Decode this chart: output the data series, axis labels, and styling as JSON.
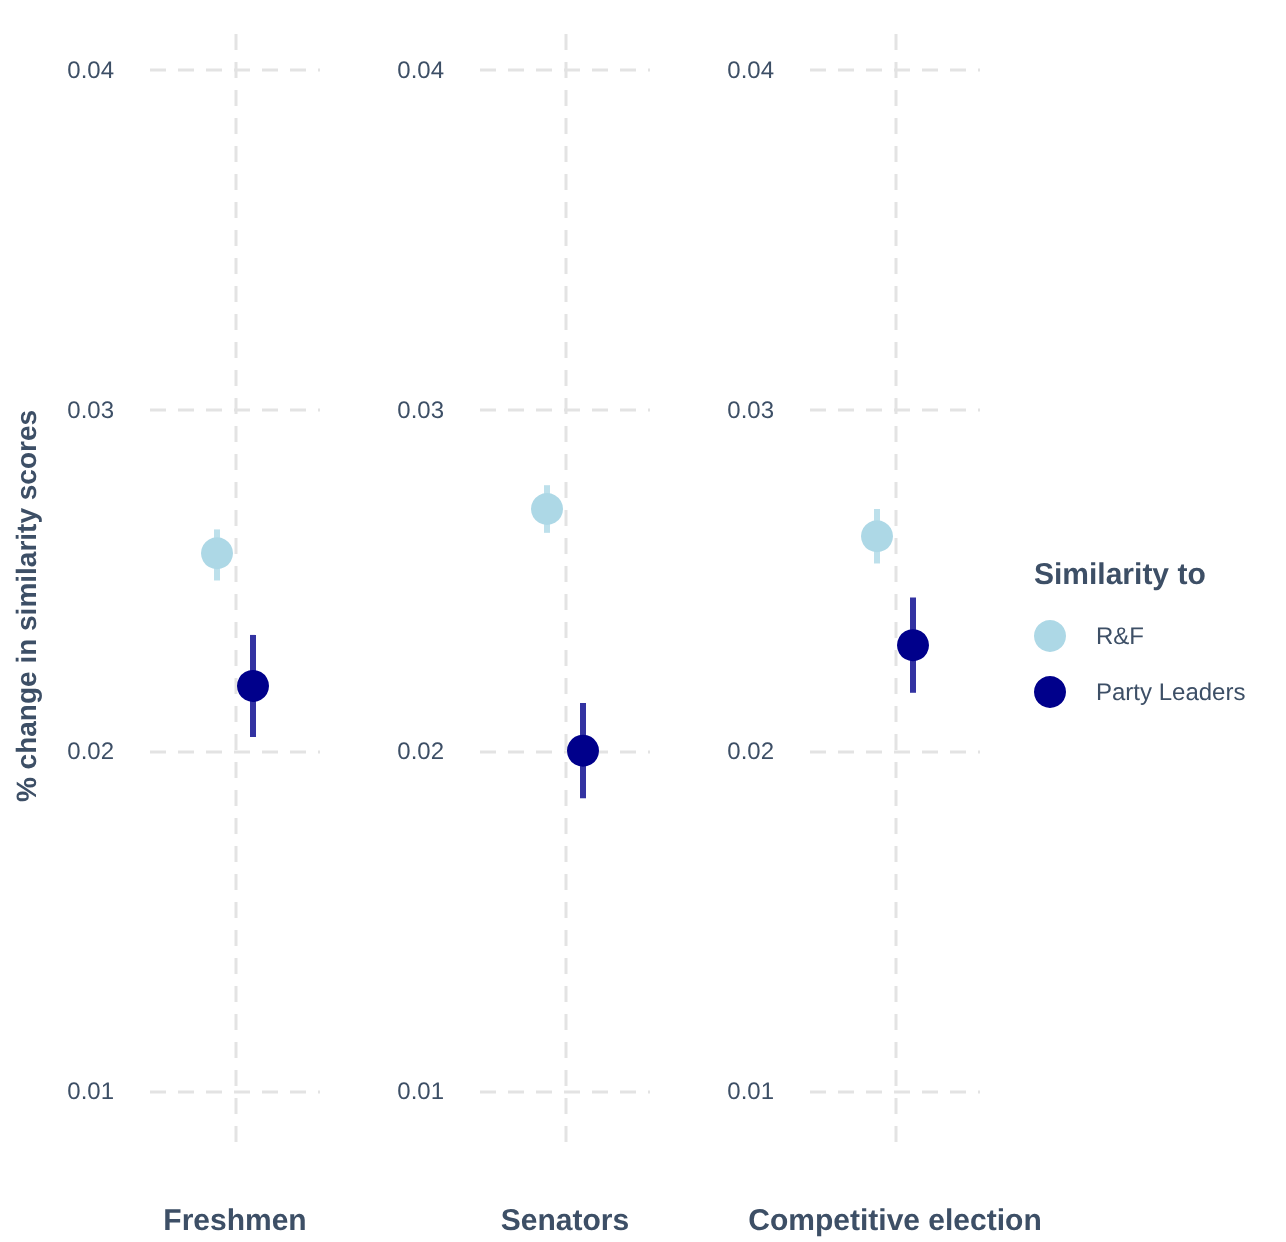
{
  "chart_data": [
    {
      "type": "scatter",
      "ylabel": "% change in similarity scores",
      "categories": [
        "Freshmen"
      ],
      "series": [
        {
          "color": "#add8e6",
          "values": [
            0.0258
          ],
          "errors": [
            [
              0.025,
              0.0265
            ]
          ]
        },
        {
          "color": "#00008b",
          "values": [
            0.0219
          ],
          "errors": [
            [
              0.0204,
              0.0234
            ]
          ]
        }
      ],
      "ylim": [
        0.0085,
        0.04
      ],
      "yticks": [
        0.01,
        0.02,
        0.03,
        0.04
      ],
      "grid": true,
      "marker": "circle",
      "legend": false
    },
    {
      "type": "scatter",
      "categories": [
        "Senators"
      ],
      "series": [
        {
          "color": "#add8e6",
          "values": [
            0.0271
          ],
          "errors": [
            [
              0.0264,
              0.0278
            ]
          ]
        },
        {
          "color": "#00008b",
          "values": [
            0.02
          ],
          "errors": [
            [
              0.0186,
              0.0214
            ]
          ]
        }
      ],
      "ylim": [
        0.0085,
        0.04
      ],
      "yticks": [
        0.01,
        0.02,
        0.03,
        0.04
      ],
      "grid": true,
      "marker": "circle",
      "legend": false
    },
    {
      "type": "scatter",
      "legend_title": "Similarity to",
      "categories": [
        "Competitive election"
      ],
      "series": [
        {
          "name": "R&F",
          "color": "#add8e6",
          "values": [
            0.0263
          ],
          "errors": [
            [
              0.0255,
              0.0271
            ]
          ]
        },
        {
          "name": "Party Leaders",
          "color": "#00008b",
          "values": [
            0.0231
          ],
          "errors": [
            [
              0.0217,
              0.0245
            ]
          ]
        }
      ],
      "ylim": [
        0.0085,
        0.04
      ],
      "yticks": [
        0.01,
        0.02,
        0.03,
        0.04
      ],
      "grid": true,
      "marker": "circle",
      "legend": "right"
    }
  ]
}
